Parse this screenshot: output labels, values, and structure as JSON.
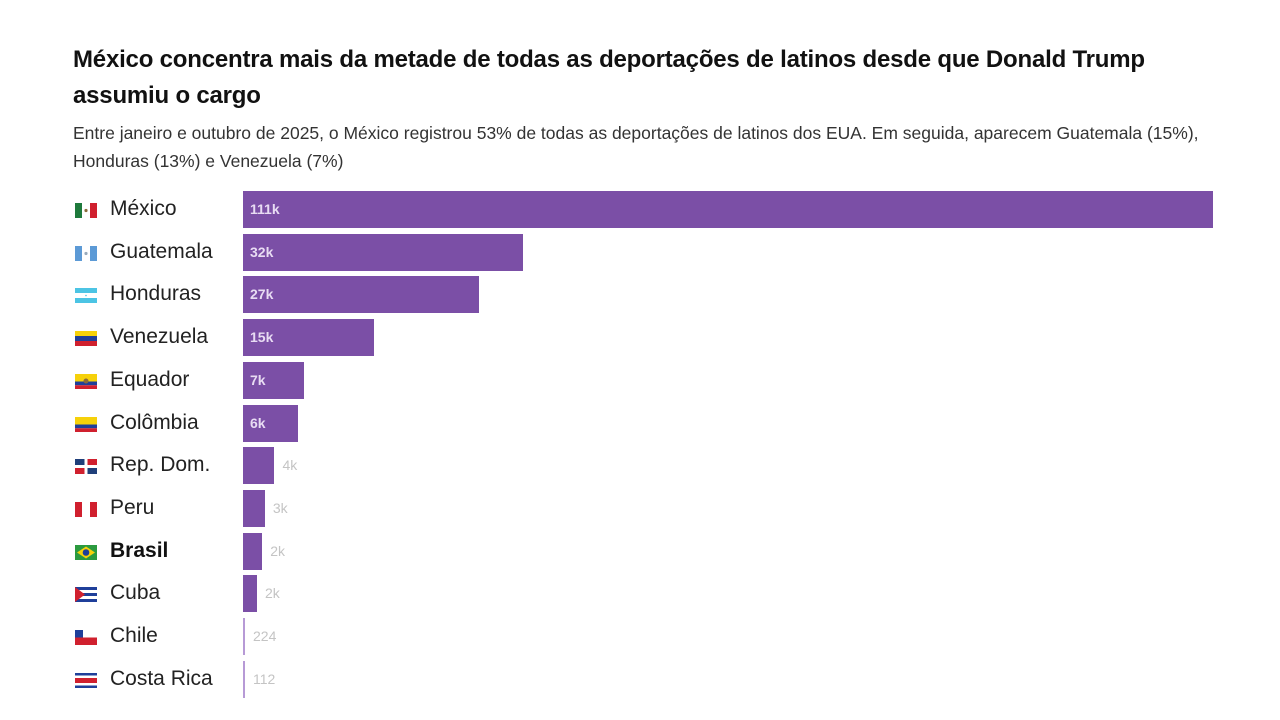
{
  "chart_data": {
    "type": "bar",
    "orientation": "horizontal",
    "title": "México concentra mais da metade de todas as deportações de latinos desde que Donald Trump assumiu o cargo",
    "subtitle": "Entre janeiro e outubro de 2025, o México registrou 53% de todas as deportações de latinos dos EUA. Em seguida, aparecem Guatemala (15%), Honduras (13%) e Venezuela (7%)",
    "categories": [
      "México",
      "Guatemala",
      "Honduras",
      "Venezuela",
      "Equador",
      "Colômbia",
      "Rep. Dom.",
      "Peru",
      "Brasil",
      "Cuba",
      "Chile",
      "Costa Rica"
    ],
    "values": [
      111000,
      32000,
      27000,
      15000,
      7000,
      6300,
      3600,
      2500,
      2200,
      1600,
      224,
      112
    ],
    "data_labels": [
      "111k",
      "32k",
      "27k",
      "15k",
      "7k",
      "6k",
      "4k",
      "3k",
      "2k",
      "2k",
      "224",
      "112"
    ],
    "flags": [
      "mexico",
      "guatemala",
      "honduras",
      "venezuela",
      "ecuador",
      "colombia",
      "dominican-republic",
      "peru",
      "brazil",
      "cuba",
      "chile",
      "costa-rica"
    ],
    "highlight": "Brasil",
    "bar_color": "#7b4fa6",
    "xlim": [
      0,
      111000
    ],
    "grid": false,
    "legend": "none"
  }
}
